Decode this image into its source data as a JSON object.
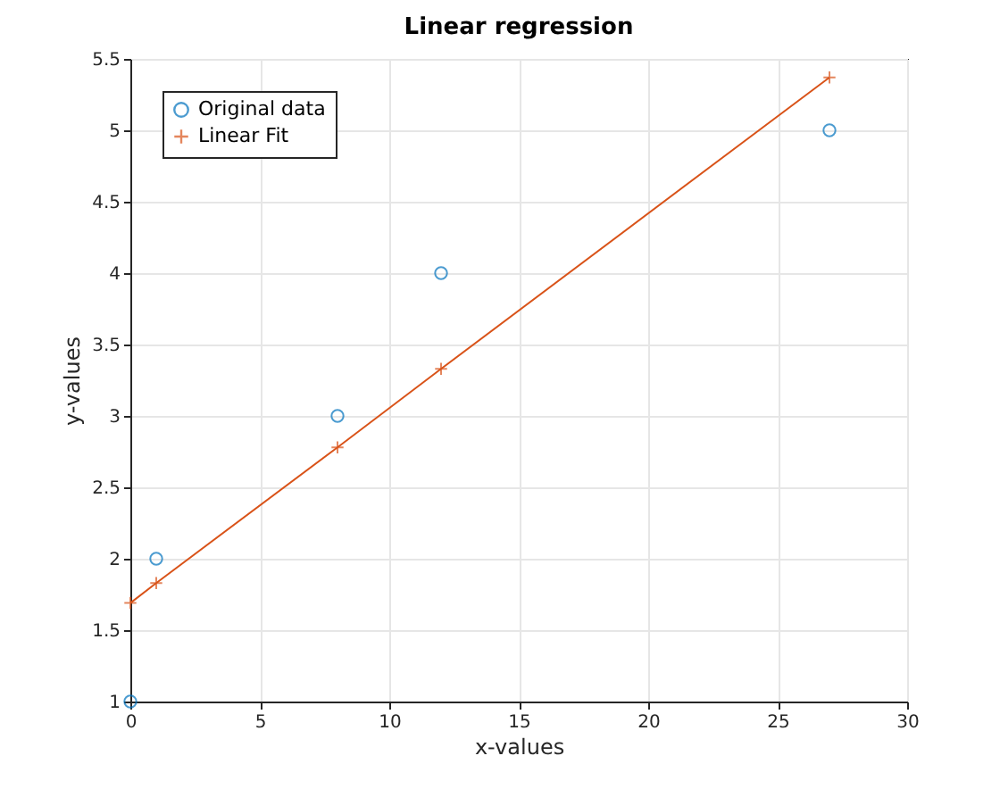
{
  "chart_data": {
    "type": "scatter",
    "title": "Linear regression",
    "xlabel": "x-values",
    "ylabel": "y-values",
    "xlim": [
      0,
      30
    ],
    "xticks": [
      0,
      5,
      10,
      15,
      20,
      25,
      30
    ],
    "ylim": [
      1,
      5.5
    ],
    "yticks": [
      1,
      1.5,
      2,
      2.5,
      3,
      3.5,
      4,
      4.5,
      5,
      5.5
    ],
    "grid": true,
    "legend": "top left",
    "series": [
      {
        "name": "Original data",
        "marker": "circle",
        "color": "#0072bd",
        "x": [
          0,
          1,
          8,
          12,
          27
        ],
        "values": [
          1,
          2,
          3,
          4,
          5
        ]
      },
      {
        "name": "Linear Fit",
        "type": "line",
        "marker": "cross",
        "line_style": "solid",
        "color": "#d95319",
        "x": [
          0,
          1,
          8,
          12,
          27
        ],
        "values": [
          1.69,
          1.83,
          2.78,
          3.33,
          5.37
        ]
      }
    ]
  }
}
